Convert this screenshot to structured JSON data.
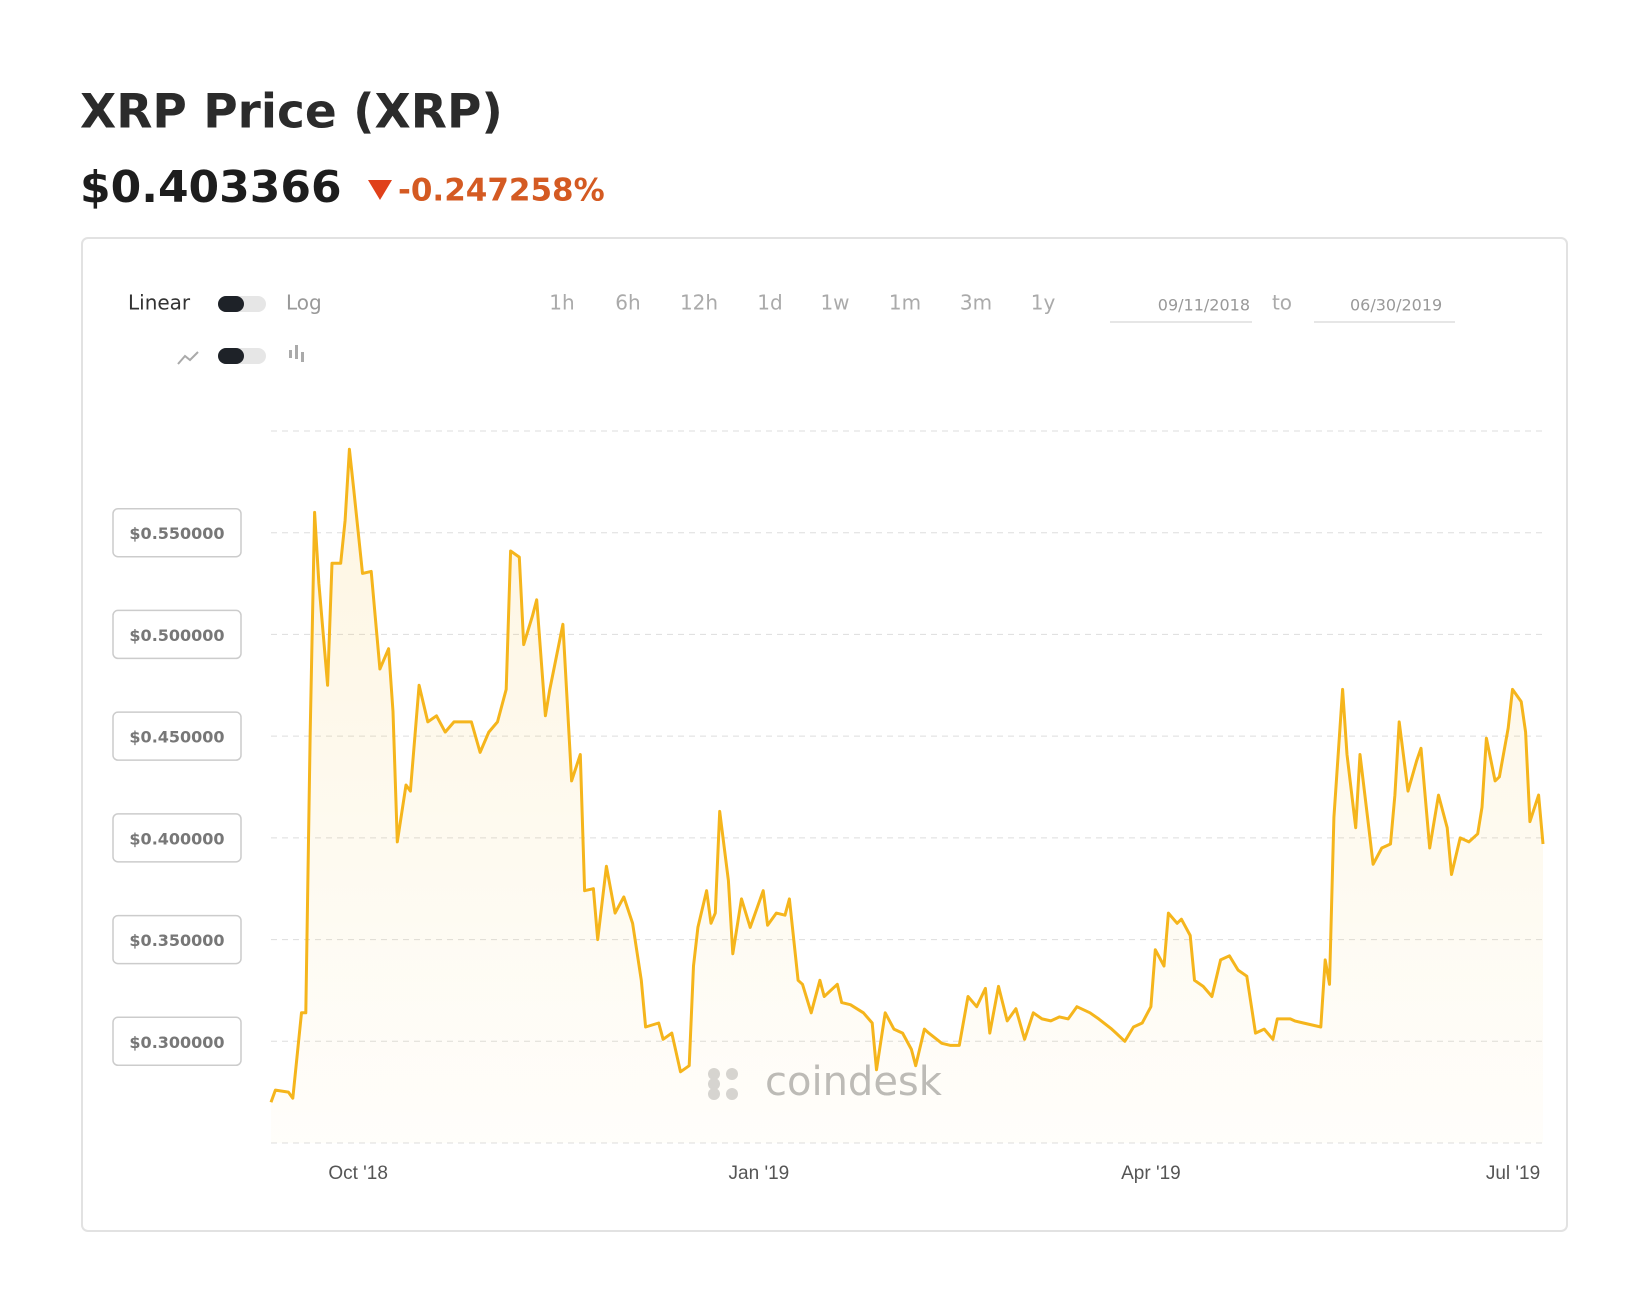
{
  "header": {
    "title": "XRP Price (XRP)",
    "price": "$0.403366",
    "change": "-0.247258%"
  },
  "controls": {
    "scale_linear": "Linear",
    "scale_log": "Log",
    "ranges": [
      "1h",
      "6h",
      "12h",
      "1d",
      "1w",
      "1m",
      "3m",
      "1y"
    ],
    "from": "09/11/2018",
    "to_label": "to",
    "to": "06/30/2019"
  },
  "watermark": "coindesk",
  "chart_data": {
    "type": "area",
    "xlim": [
      "2018-09-11",
      "2019-06-30"
    ],
    "xticks": [
      {
        "value": "2018-10-01",
        "label": "Oct '18"
      },
      {
        "value": "2019-01-01",
        "label": "Jan '19"
      },
      {
        "value": "2019-04-01",
        "label": "Apr '19"
      },
      {
        "value": "2019-07-01",
        "label": "Jul '19"
      }
    ],
    "ylim": [
      0.25,
      0.6
    ],
    "yticks": [
      {
        "value": 0.3,
        "label": "$0.300000"
      },
      {
        "value": 0.35,
        "label": "$0.350000"
      },
      {
        "value": 0.4,
        "label": "$0.400000"
      },
      {
        "value": 0.45,
        "label": "$0.450000"
      },
      {
        "value": 0.5,
        "label": "$0.500000"
      },
      {
        "value": 0.55,
        "label": "$0.550000"
      }
    ],
    "grid": true,
    "series": [
      {
        "color": "#f5b51c",
        "x": [
          "2018-09-11",
          "2018-09-12",
          "2018-09-15",
          "2018-09-16",
          "2018-09-18",
          "2018-09-19",
          "2018-09-20",
          "2018-09-21",
          "2018-09-22",
          "2018-09-24",
          "2018-09-25",
          "2018-09-27",
          "2018-09-28",
          "2018-09-29",
          "2018-09-30",
          "2018-10-02",
          "2018-10-04",
          "2018-10-06",
          "2018-10-08",
          "2018-10-09",
          "2018-10-10",
          "2018-10-12",
          "2018-10-13",
          "2018-10-15",
          "2018-10-17",
          "2018-10-19",
          "2018-10-21",
          "2018-10-23",
          "2018-10-25",
          "2018-10-27",
          "2018-10-29",
          "2018-10-31",
          "2018-11-02",
          "2018-11-04",
          "2018-11-05",
          "2018-11-07",
          "2018-11-08",
          "2018-11-10",
          "2018-11-11",
          "2018-11-13",
          "2018-11-14",
          "2018-11-17",
          "2018-11-19",
          "2018-11-21",
          "2018-11-22",
          "2018-11-24",
          "2018-11-25",
          "2018-11-27",
          "2018-11-29",
          "2018-12-01",
          "2018-12-03",
          "2018-12-05",
          "2018-12-06",
          "2018-12-09",
          "2018-12-10",
          "2018-12-12",
          "2018-12-14",
          "2018-12-16",
          "2018-12-17",
          "2018-12-18",
          "2018-12-20",
          "2018-12-21",
          "2018-12-22",
          "2018-12-23",
          "2018-12-25",
          "2018-12-26",
          "2018-12-28",
          "2018-12-30",
          "2018-12-31",
          "2019-01-02",
          "2019-01-03",
          "2019-01-05",
          "2019-01-07",
          "2019-01-08",
          "2019-01-10",
          "2019-01-11",
          "2019-01-13",
          "2019-01-15",
          "2019-01-16",
          "2019-01-19",
          "2019-01-20",
          "2019-01-22",
          "2019-01-25",
          "2019-01-27",
          "2019-01-28",
          "2019-01-30",
          "2019-02-01",
          "2019-02-03",
          "2019-02-05",
          "2019-02-06",
          "2019-02-08",
          "2019-02-09",
          "2019-02-12",
          "2019-02-14",
          "2019-02-16",
          "2019-02-18",
          "2019-02-20",
          "2019-02-22",
          "2019-02-23",
          "2019-02-25",
          "2019-02-27",
          "2019-03-01",
          "2019-03-03",
          "2019-03-05",
          "2019-03-07",
          "2019-03-09",
          "2019-03-11",
          "2019-03-13",
          "2019-03-15",
          "2019-03-18",
          "2019-03-20",
          "2019-03-23",
          "2019-03-24",
          "2019-03-26",
          "2019-03-28",
          "2019-03-30",
          "2019-04-01",
          "2019-04-02",
          "2019-04-04",
          "2019-04-05",
          "2019-04-07",
          "2019-04-08",
          "2019-04-10",
          "2019-04-11",
          "2019-04-13",
          "2019-04-15",
          "2019-04-17",
          "2019-04-19",
          "2019-04-21",
          "2019-04-23",
          "2019-04-25",
          "2019-04-27",
          "2019-04-29",
          "2019-04-30",
          "2019-05-03",
          "2019-05-04",
          "2019-05-06",
          "2019-05-10",
          "2019-05-11",
          "2019-05-12",
          "2019-05-13",
          "2019-05-15",
          "2019-05-16",
          "2019-05-18",
          "2019-05-19",
          "2019-05-21",
          "2019-05-22",
          "2019-05-24",
          "2019-05-26",
          "2019-05-27",
          "2019-05-28",
          "2019-05-30",
          "2019-06-01",
          "2019-06-02",
          "2019-06-04",
          "2019-06-06",
          "2019-06-08",
          "2019-06-09",
          "2019-06-11",
          "2019-06-13",
          "2019-06-15",
          "2019-06-16",
          "2019-06-17",
          "2019-06-19",
          "2019-06-20",
          "2019-06-22",
          "2019-06-23",
          "2019-06-25",
          "2019-06-26",
          "2019-06-27",
          "2019-06-29",
          "2019-06-30"
        ],
        "values": [
          0.27,
          0.276,
          0.275,
          0.272,
          0.314,
          0.314,
          0.452,
          0.56,
          0.525,
          0.475,
          0.535,
          0.535,
          0.556,
          0.591,
          0.571,
          0.53,
          0.531,
          0.483,
          0.493,
          0.462,
          0.398,
          0.426,
          0.423,
          0.475,
          0.457,
          0.46,
          0.452,
          0.457,
          0.457,
          0.457,
          0.442,
          0.452,
          0.457,
          0.473,
          0.541,
          0.538,
          0.495,
          0.509,
          0.517,
          0.46,
          0.473,
          0.505,
          0.428,
          0.441,
          0.374,
          0.375,
          0.35,
          0.386,
          0.363,
          0.371,
          0.358,
          0.33,
          0.307,
          0.309,
          0.301,
          0.304,
          0.285,
          0.288,
          0.337,
          0.356,
          0.374,
          0.358,
          0.363,
          0.413,
          0.379,
          0.343,
          0.37,
          0.356,
          0.362,
          0.374,
          0.357,
          0.363,
          0.362,
          0.37,
          0.33,
          0.328,
          0.314,
          0.33,
          0.322,
          0.328,
          0.319,
          0.318,
          0.314,
          0.309,
          0.286,
          0.314,
          0.306,
          0.304,
          0.296,
          0.288,
          0.306,
          0.304,
          0.299,
          0.298,
          0.298,
          0.322,
          0.317,
          0.326,
          0.304,
          0.327,
          0.31,
          0.316,
          0.301,
          0.314,
          0.311,
          0.31,
          0.312,
          0.311,
          0.317,
          0.314,
          0.311,
          0.306,
          0.304,
          0.3,
          0.307,
          0.309,
          0.317,
          0.345,
          0.337,
          0.363,
          0.358,
          0.36,
          0.352,
          0.33,
          0.327,
          0.322,
          0.34,
          0.342,
          0.335,
          0.332,
          0.304,
          0.306,
          0.301,
          0.311,
          0.311,
          0.31,
          0.309,
          0.307,
          0.34,
          0.328,
          0.41,
          0.473,
          0.441,
          0.405,
          0.441,
          0.405,
          0.387,
          0.395,
          0.397,
          0.421,
          0.457,
          0.423,
          0.438,
          0.444,
          0.395,
          0.421,
          0.405,
          0.382,
          0.4,
          0.398,
          0.402,
          0.415,
          0.449,
          0.428,
          0.43,
          0.454,
          0.473,
          0.467,
          0.452,
          0.408,
          0.421,
          0.397
        ]
      }
    ]
  }
}
